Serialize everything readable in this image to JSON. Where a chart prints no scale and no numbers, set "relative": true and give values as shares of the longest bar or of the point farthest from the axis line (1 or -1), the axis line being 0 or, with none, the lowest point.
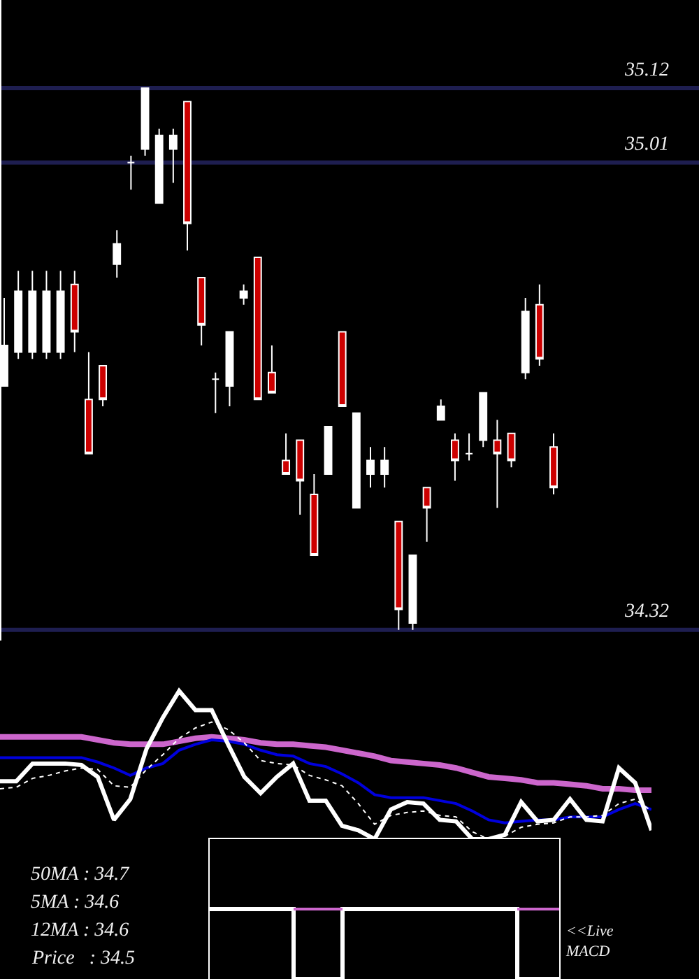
{
  "chart_data": [
    {
      "type": "candlestick",
      "categories": [
        null,
        null,
        null,
        null,
        null,
        null,
        null,
        null,
        null,
        null,
        null,
        null,
        null,
        null,
        null,
        null,
        null,
        null,
        null,
        null,
        null,
        null,
        null,
        null,
        null,
        null,
        null,
        null,
        null,
        null,
        null,
        null,
        null,
        null,
        null,
        null,
        null,
        null,
        null,
        null
      ],
      "ohlc": [
        [
          34.68,
          34.81,
          34.68,
          34.74
        ],
        [
          34.73,
          34.85,
          34.72,
          34.82
        ],
        [
          34.73,
          34.85,
          34.72,
          34.82
        ],
        [
          34.73,
          34.85,
          34.72,
          34.82
        ],
        [
          34.73,
          34.85,
          34.72,
          34.82
        ],
        [
          34.83,
          34.85,
          34.73,
          34.76
        ],
        [
          34.66,
          34.73,
          34.58,
          34.58
        ],
        [
          34.71,
          34.71,
          34.65,
          34.66
        ],
        [
          34.86,
          34.91,
          34.84,
          34.89
        ],
        [
          35.01,
          35.02,
          34.97,
          35.01
        ],
        [
          35.03,
          35.12,
          35.02,
          35.12
        ],
        [
          34.95,
          35.06,
          34.95,
          35.05
        ],
        [
          35.03,
          35.06,
          34.98,
          35.05
        ],
        [
          35.1,
          35.1,
          34.88,
          34.92
        ],
        [
          34.84,
          34.84,
          34.74,
          34.77
        ],
        [
          34.69,
          34.7,
          34.64,
          34.69
        ],
        [
          34.68,
          34.76,
          34.65,
          34.76
        ],
        [
          34.81,
          34.83,
          34.8,
          34.82
        ],
        [
          34.87,
          34.87,
          34.66,
          34.66
        ],
        [
          34.7,
          34.74,
          34.67,
          34.67
        ],
        [
          34.57,
          34.61,
          34.55,
          34.55
        ],
        [
          34.6,
          34.6,
          34.49,
          34.54
        ],
        [
          34.52,
          34.55,
          34.43,
          34.43
        ],
        [
          34.55,
          34.62,
          34.55,
          34.62
        ],
        [
          34.76,
          34.76,
          34.65,
          34.65
        ],
        [
          34.5,
          34.64,
          34.5,
          34.64
        ],
        [
          34.55,
          34.59,
          34.53,
          34.57
        ],
        [
          34.55,
          34.59,
          34.53,
          34.57
        ],
        [
          34.48,
          34.48,
          34.32,
          34.35
        ],
        [
          34.33,
          34.43,
          34.32,
          34.43
        ],
        [
          34.53,
          34.53,
          34.45,
          34.5
        ],
        [
          34.63,
          34.66,
          34.63,
          34.65
        ],
        [
          34.6,
          34.61,
          34.54,
          34.57
        ],
        [
          34.58,
          34.61,
          34.57,
          34.58
        ],
        [
          34.6,
          34.67,
          34.59,
          34.67
        ],
        [
          34.6,
          34.63,
          34.5,
          34.58
        ],
        [
          34.61,
          34.61,
          34.56,
          34.57
        ],
        [
          34.7,
          34.81,
          34.69,
          34.79
        ],
        [
          34.8,
          34.83,
          34.71,
          34.72
        ],
        [
          34.59,
          34.61,
          34.52,
          34.53
        ]
      ],
      "colors": [
        "#ffffff",
        "#ffffff",
        "#ffffff",
        "#ffffff",
        "#ffffff",
        "#cc0000",
        "#cc0000",
        "#cc0000",
        "#ffffff",
        "#ffffff",
        "#ffffff",
        "#ffffff",
        "#ffffff",
        "#cc0000",
        "#cc0000",
        "#ffffff",
        "#ffffff",
        "#ffffff",
        "#cc0000",
        "#cc0000",
        "#cc0000",
        "#cc0000",
        "#cc0000",
        "#ffffff",
        "#cc0000",
        "#ffffff",
        "#ffffff",
        "#ffffff",
        "#cc0000",
        "#ffffff",
        "#cc0000",
        "#ffffff",
        "#cc0000",
        "#ffffff",
        "#ffffff",
        "#cc0000",
        "#cc0000",
        "#ffffff",
        "#cc0000",
        "#cc0000"
      ],
      "ylim": [
        34.3,
        35.25
      ],
      "tick_labels": false,
      "ref_lines": [
        {
          "axis": "y",
          "value": 35.12,
          "label": "35.12",
          "color": "#1e1e50"
        },
        {
          "axis": "y",
          "value": 35.01,
          "label": "35.01",
          "color": "#1e1e50"
        },
        {
          "axis": "y",
          "value": 34.32,
          "label": "34.32",
          "color": "#1e1e50"
        }
      ]
    },
    {
      "type": "line",
      "relative": true,
      "line_style": "solid",
      "categories": [
        null,
        null,
        null,
        null,
        null,
        null,
        null,
        null,
        null,
        null,
        null,
        null,
        null,
        null,
        null,
        null,
        null,
        null,
        null,
        null,
        null,
        null,
        null,
        null,
        null,
        null,
        null,
        null,
        null,
        null,
        null,
        null,
        null,
        null,
        null,
        null,
        null,
        null,
        null,
        null,
        null
      ],
      "series": [
        {
          "color": "#cc66cc",
          "values": [
            0.69,
            0.69,
            0.69,
            0.69,
            0.69,
            0.69,
            0.67,
            0.65,
            0.64,
            0.64,
            0.64,
            0.66,
            0.68,
            0.69,
            0.68,
            0.67,
            0.65,
            0.64,
            0.64,
            0.63,
            0.62,
            0.6,
            0.58,
            0.56,
            0.53,
            0.52,
            0.51,
            0.5,
            0.48,
            0.45,
            0.42,
            0.41,
            0.4,
            0.38,
            0.38,
            0.37,
            0.36,
            0.34,
            0.34,
            0.33,
            0.33
          ]
        },
        {
          "color": "#0000dd",
          "values": [
            0.55,
            0.55,
            0.55,
            0.55,
            0.55,
            0.55,
            0.52,
            0.48,
            0.43,
            0.48,
            0.51,
            0.6,
            0.64,
            0.67,
            0.66,
            0.64,
            0.6,
            0.57,
            0.56,
            0.51,
            0.49,
            0.44,
            0.38,
            0.3,
            0.28,
            0.28,
            0.28,
            0.26,
            0.24,
            0.19,
            0.13,
            0.11,
            0.12,
            0.13,
            0.13,
            0.15,
            0.15,
            0.15,
            0.2,
            0.24,
            0.2
          ]
        },
        {
          "color": "#ffffff",
          "line_style": "dotted",
          "values": [
            0.34,
            0.35,
            0.41,
            0.43,
            0.46,
            0.48,
            0.47,
            0.36,
            0.35,
            0.47,
            0.57,
            0.68,
            0.75,
            0.79,
            0.74,
            0.65,
            0.53,
            0.51,
            0.5,
            0.43,
            0.4,
            0.36,
            0.24,
            0.1,
            0.16,
            0.18,
            0.19,
            0.16,
            0.15,
            0.05,
            0.0,
            0.02,
            0.08,
            0.1,
            0.11,
            0.15,
            0.15,
            0.16,
            0.24,
            0.27,
            0.19
          ]
        },
        {
          "color": "#ffffff",
          "values": [
            0.39,
            0.39,
            0.51,
            0.51,
            0.51,
            0.5,
            0.42,
            0.13,
            0.27,
            0.61,
            0.82,
            1.0,
            0.87,
            0.87,
            0.64,
            0.42,
            0.31,
            0.42,
            0.51,
            0.26,
            0.26,
            0.09,
            0.06,
            0.0,
            0.2,
            0.25,
            0.24,
            0.13,
            0.12,
            0.0,
            0.0,
            0.03,
            0.25,
            0.12,
            0.13,
            0.27,
            0.13,
            0.12,
            0.48,
            0.38,
            0.06
          ]
        }
      ]
    },
    {
      "type": "step",
      "relative": true,
      "categories": [
        null,
        null,
        null,
        null,
        null,
        null,
        null,
        null,
        null,
        null,
        null,
        null,
        null,
        null,
        null,
        null,
        null,
        null,
        null,
        null,
        null,
        null,
        null,
        null,
        null,
        null,
        null,
        null,
        null,
        null,
        null,
        null,
        null,
        null,
        null,
        null,
        null,
        null,
        null,
        null,
        null,
        null,
        null,
        null,
        null,
        null,
        null,
        null,
        null,
        null,
        null
      ],
      "series": [
        {
          "color": "#ffffff",
          "values": [
            1,
            1,
            1,
            1,
            1,
            1,
            1,
            1,
            1,
            1,
            1,
            1,
            0,
            0,
            0,
            0,
            0,
            0,
            0,
            1,
            1,
            1,
            1,
            1,
            1,
            1,
            1,
            1,
            1,
            1,
            1,
            1,
            1,
            1,
            1,
            1,
            1,
            1,
            1,
            1,
            1,
            1,
            1,
            1,
            0,
            0,
            0,
            0,
            0,
            0,
            0
          ]
        },
        {
          "color": "#cc66cc",
          "values": [
            null,
            null,
            null,
            null,
            null,
            null,
            null,
            null,
            null,
            null,
            null,
            null,
            1,
            1,
            1,
            1,
            1,
            1,
            1,
            1,
            null,
            null,
            null,
            null,
            null,
            null,
            null,
            null,
            null,
            null,
            null,
            null,
            null,
            null,
            null,
            null,
            null,
            null,
            null,
            null,
            null,
            null,
            null,
            null,
            1,
            1,
            1,
            1,
            1,
            1,
            1
          ]
        }
      ],
      "annotations": [
        "<<Live\nMACD"
      ]
    },
    {
      "type": "other",
      "annotations": [
        "50MA : 34.7",
        "5MA : 34.6",
        "12MA : 34.6",
        "Price   : 34.5"
      ]
    }
  ]
}
